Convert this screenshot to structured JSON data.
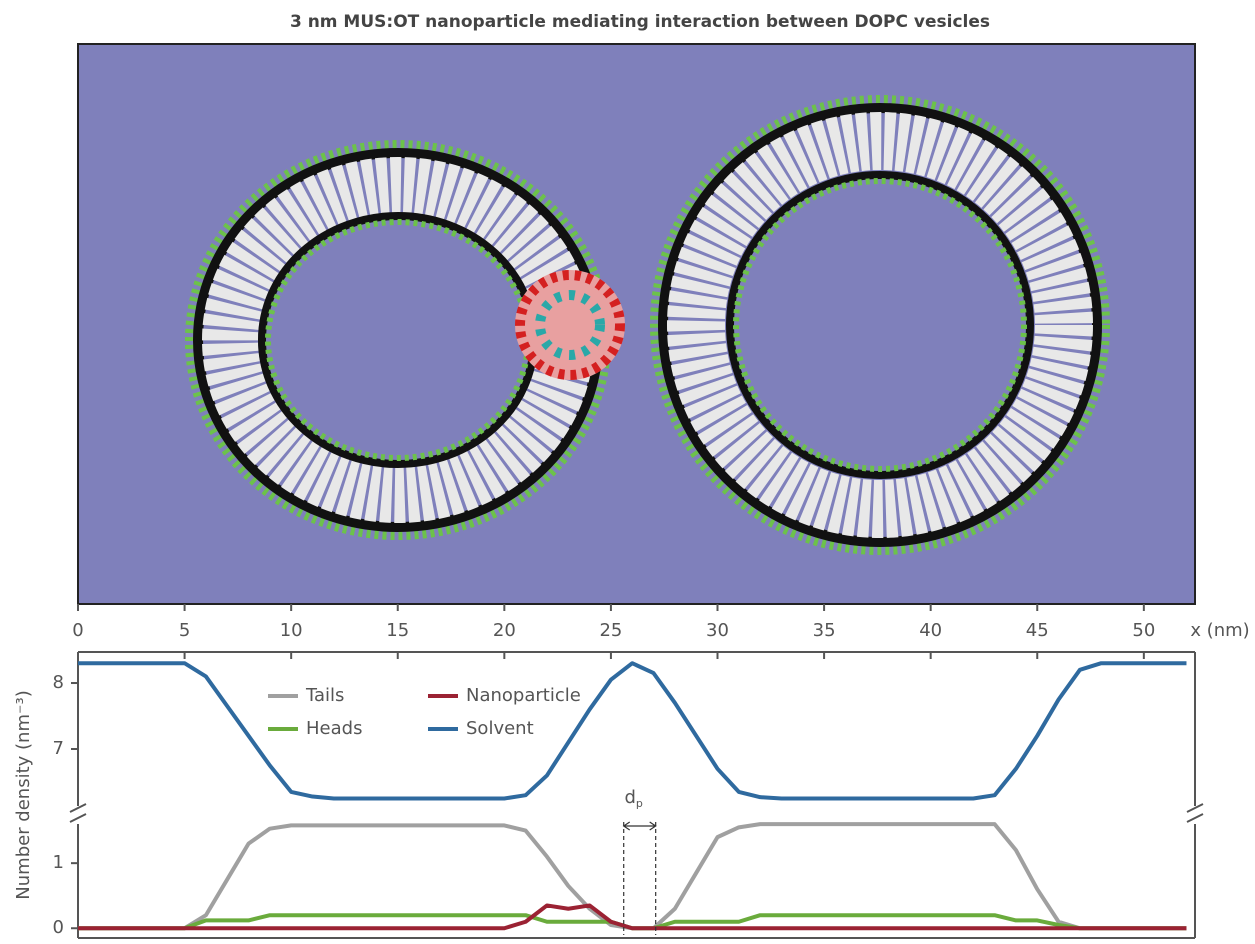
{
  "chart_data": [
    {
      "type": "line",
      "title": "3 nm MUS:OT nanoparticle mediating interaction between DOPC vesicles",
      "xlabel": "x (nm)",
      "ylabel": "Number density (nm⁻³)",
      "xlim": [
        0,
        52.4
      ],
      "xticks": [
        0,
        5,
        10,
        15,
        20,
        25,
        30,
        35,
        40,
        45,
        50
      ],
      "ylim": [
        6.0,
        8.47
      ],
      "yticks": [
        7,
        8
      ],
      "x": [
        0,
        1,
        2,
        3,
        4,
        5,
        6,
        7,
        8,
        9,
        10,
        11,
        12,
        13,
        14,
        15,
        16,
        17,
        18,
        19,
        20,
        21,
        22,
        23,
        24,
        25,
        26,
        27,
        28,
        29,
        30,
        31,
        32,
        33,
        34,
        35,
        36,
        37,
        38,
        39,
        40,
        41,
        42,
        43,
        44,
        45,
        46,
        47,
        48,
        49,
        50,
        51,
        52
      ],
      "series": [
        {
          "name": "Solvent",
          "color": "#2f6a9f",
          "values": [
            8.3,
            8.3,
            8.3,
            8.3,
            8.3,
            8.3,
            8.1,
            7.65,
            7.2,
            6.75,
            6.35,
            6.28,
            6.25,
            6.25,
            6.25,
            6.25,
            6.25,
            6.25,
            6.25,
            6.25,
            6.25,
            6.3,
            6.6,
            7.1,
            7.6,
            8.05,
            8.3,
            8.15,
            7.7,
            7.2,
            6.7,
            6.35,
            6.27,
            6.25,
            6.25,
            6.25,
            6.25,
            6.25,
            6.25,
            6.25,
            6.25,
            6.25,
            6.25,
            6.3,
            6.7,
            7.2,
            7.75,
            8.2,
            8.3,
            8.3,
            8.3,
            8.3,
            8.3
          ]
        }
      ],
      "annotations": [
        {
          "label": "d",
          "subscript": "p",
          "x0": 25.6,
          "x1": 27.1
        }
      ]
    },
    {
      "type": "line",
      "xlim": [
        0,
        52.4
      ],
      "ylim": [
        -0.15,
        1.74
      ],
      "yticks": [
        0,
        1
      ],
      "x": [
        0,
        1,
        2,
        3,
        4,
        5,
        6,
        7,
        8,
        9,
        10,
        11,
        12,
        13,
        14,
        15,
        16,
        17,
        18,
        19,
        20,
        21,
        22,
        23,
        24,
        25,
        26,
        27,
        28,
        29,
        30,
        31,
        32,
        33,
        34,
        35,
        36,
        37,
        38,
        39,
        40,
        41,
        42,
        43,
        44,
        45,
        46,
        47,
        48,
        49,
        50,
        51,
        52
      ],
      "series": [
        {
          "name": "Tails",
          "color": "#a0a0a0",
          "values": [
            0,
            0,
            0,
            0,
            0,
            0,
            0.2,
            0.75,
            1.3,
            1.53,
            1.58,
            1.58,
            1.58,
            1.58,
            1.58,
            1.58,
            1.58,
            1.58,
            1.58,
            1.58,
            1.58,
            1.5,
            1.1,
            0.65,
            0.3,
            0.05,
            0,
            0,
            0.3,
            0.85,
            1.4,
            1.55,
            1.6,
            1.6,
            1.6,
            1.6,
            1.6,
            1.6,
            1.6,
            1.6,
            1.6,
            1.6,
            1.6,
            1.6,
            1.2,
            0.6,
            0.1,
            0,
            0,
            0,
            0,
            0,
            0
          ]
        },
        {
          "name": "Heads",
          "color": "#6aab3c",
          "values": [
            0,
            0,
            0,
            0,
            0,
            0,
            0.12,
            0.12,
            0.12,
            0.2,
            0.2,
            0.2,
            0.2,
            0.2,
            0.2,
            0.2,
            0.2,
            0.2,
            0.2,
            0.2,
            0.2,
            0.2,
            0.1,
            0.1,
            0.1,
            0.1,
            0,
            0,
            0.1,
            0.1,
            0.1,
            0.1,
            0.2,
            0.2,
            0.2,
            0.2,
            0.2,
            0.2,
            0.2,
            0.2,
            0.2,
            0.2,
            0.2,
            0.2,
            0.12,
            0.12,
            0.05,
            0,
            0,
            0,
            0,
            0,
            0
          ]
        },
        {
          "name": "Nanoparticle",
          "color": "#9b2233",
          "values": [
            0,
            0,
            0,
            0,
            0,
            0,
            0,
            0,
            0,
            0,
            0,
            0,
            0,
            0,
            0,
            0,
            0,
            0,
            0,
            0,
            0,
            0.1,
            0.35,
            0.3,
            0.35,
            0.1,
            0,
            0,
            0,
            0,
            0,
            0,
            0,
            0,
            0,
            0,
            0,
            0,
            0,
            0,
            0,
            0,
            0,
            0,
            0,
            0,
            0,
            0,
            0,
            0,
            0,
            0,
            0
          ]
        }
      ]
    }
  ]
}
